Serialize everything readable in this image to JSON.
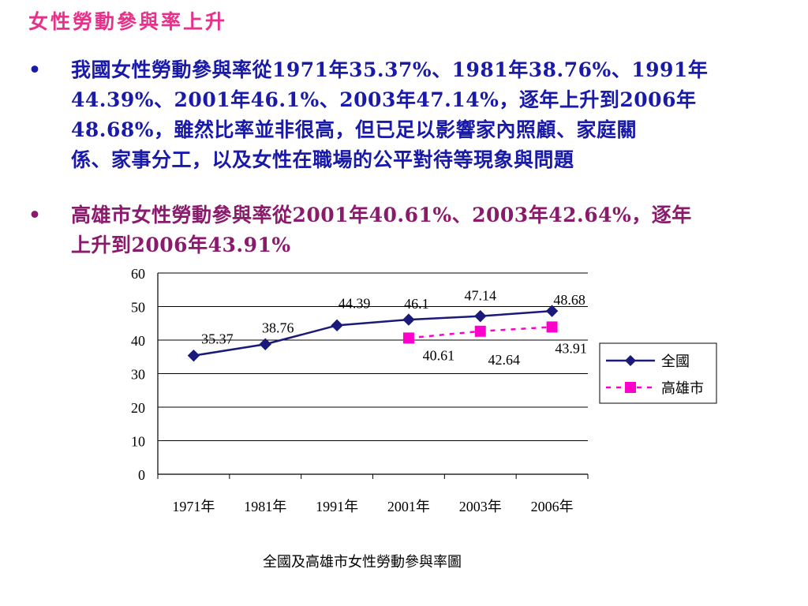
{
  "title": "女性勞動參與率上升",
  "title_color": "#e8308a",
  "bullets": [
    {
      "marker": "•",
      "text": "我國女性勞動參與率從1971年35.37%、1981年38.76%、1991年\n44.39%、2001年46.1%、2003年47.14%，逐年上升到2006年\n48.68%，雖然比率並非很高，但已足以影響家內照顧、家庭關\n係、家事分工，以及女性在職場的公平對待等現象與問題",
      "color": "#1a1aa8"
    },
    {
      "marker": "•",
      "text": "高雄市女性勞動參與率從2001年40.61%、2003年42.64%，逐年\n上升到2006年43.91%",
      "color": "#8a1a6c"
    }
  ],
  "chart_data": {
    "type": "line",
    "categories": [
      "1971年",
      "1981年",
      "1991年",
      "2001年",
      "2003年",
      "2006年"
    ],
    "ylim": [
      0,
      60
    ],
    "yticks": [
      0,
      10,
      20,
      30,
      40,
      50,
      60
    ],
    "grid": true,
    "legend_position": "right",
    "series": [
      {
        "name": "全國",
        "values": [
          35.37,
          38.76,
          44.39,
          46.1,
          47.14,
          48.68
        ],
        "labels": [
          "35.37",
          "38.76",
          "44.39",
          "46.1",
          "47.14",
          "48.68"
        ],
        "color": "#1a1a7a",
        "marker": "diamond",
        "line_style": "solid"
      },
      {
        "name": "高雄市",
        "values": [
          null,
          null,
          null,
          40.61,
          42.64,
          43.91
        ],
        "labels": [
          "",
          "",
          "",
          "40.61",
          "42.64",
          "43.91"
        ],
        "color": "#ff00cc",
        "marker": "square",
        "line_style": "dashed"
      }
    ]
  },
  "caption": "全國及高雄市女性勞動參與率圖"
}
